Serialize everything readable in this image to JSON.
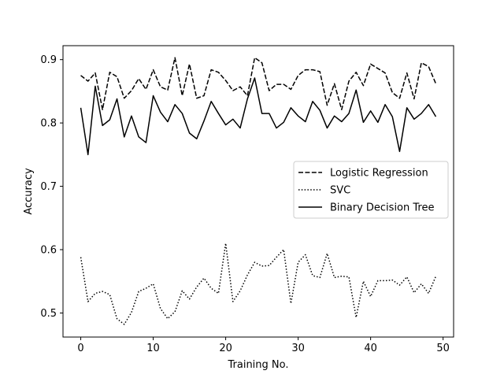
{
  "chart_data": {
    "type": "line",
    "title": "",
    "xlabel": "Training No.",
    "ylabel": "Accuracy",
    "xlim": [
      -2.45,
      51.45
    ],
    "ylim": [
      0.462,
      0.922
    ],
    "xticks": [
      0,
      10,
      20,
      30,
      40,
      50
    ],
    "yticks": [
      0.5,
      0.6,
      0.7,
      0.8,
      0.9
    ],
    "grid": false,
    "legend_position": "center-right",
    "x": [
      0,
      1,
      2,
      3,
      4,
      5,
      6,
      7,
      8,
      9,
      10,
      11,
      12,
      13,
      14,
      15,
      16,
      17,
      18,
      19,
      20,
      21,
      22,
      23,
      24,
      25,
      26,
      27,
      28,
      29,
      30,
      31,
      32,
      33,
      34,
      35,
      36,
      37,
      38,
      39,
      40,
      41,
      42,
      43,
      44,
      45,
      46,
      47,
      48,
      49
    ],
    "series": [
      {
        "name": "Logistic Regression",
        "style": "dashed",
        "color": "#000000",
        "values": [
          0.875,
          0.866,
          0.879,
          0.821,
          0.88,
          0.873,
          0.839,
          0.851,
          0.87,
          0.853,
          0.884,
          0.857,
          0.852,
          0.903,
          0.843,
          0.893,
          0.839,
          0.843,
          0.884,
          0.88,
          0.867,
          0.851,
          0.857,
          0.843,
          0.903,
          0.895,
          0.851,
          0.861,
          0.861,
          0.853,
          0.875,
          0.884,
          0.884,
          0.881,
          0.828,
          0.862,
          0.821,
          0.866,
          0.88,
          0.859,
          0.893,
          0.886,
          0.879,
          0.848,
          0.839,
          0.879,
          0.838,
          0.895,
          0.889,
          0.862
        ]
      },
      {
        "name": "SVC",
        "style": "dotted",
        "color": "#000000",
        "values": [
          0.588,
          0.518,
          0.531,
          0.534,
          0.529,
          0.491,
          0.482,
          0.501,
          0.534,
          0.539,
          0.546,
          0.507,
          0.491,
          0.502,
          0.535,
          0.522,
          0.541,
          0.555,
          0.539,
          0.531,
          0.61,
          0.518,
          0.535,
          0.56,
          0.58,
          0.574,
          0.575,
          0.588,
          0.6,
          0.515,
          0.58,
          0.592,
          0.559,
          0.556,
          0.594,
          0.556,
          0.558,
          0.557,
          0.493,
          0.55,
          0.526,
          0.551,
          0.551,
          0.552,
          0.544,
          0.557,
          0.532,
          0.546,
          0.531,
          0.558
        ]
      },
      {
        "name": "Binary Decision Tree",
        "style": "solid",
        "color": "#000000",
        "values": [
          0.824,
          0.75,
          0.858,
          0.796,
          0.805,
          0.838,
          0.778,
          0.811,
          0.778,
          0.769,
          0.843,
          0.817,
          0.802,
          0.829,
          0.815,
          0.784,
          0.775,
          0.803,
          0.834,
          0.815,
          0.797,
          0.806,
          0.792,
          0.838,
          0.871,
          0.815,
          0.815,
          0.792,
          0.801,
          0.824,
          0.811,
          0.802,
          0.834,
          0.82,
          0.792,
          0.811,
          0.802,
          0.815,
          0.852,
          0.801,
          0.819,
          0.801,
          0.829,
          0.81,
          0.755,
          0.824,
          0.806,
          0.815,
          0.829,
          0.81
        ]
      }
    ]
  }
}
